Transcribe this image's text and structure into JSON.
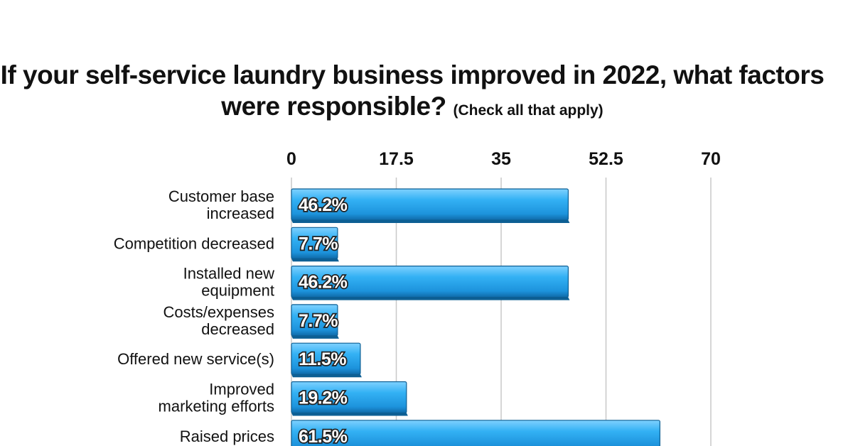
{
  "chart_data": {
    "type": "bar",
    "orientation": "horizontal",
    "title": "If your self-service laundry business improved in 2022, what factors were responsible?",
    "subtitle": "(Check all that apply)",
    "categories": [
      "Customer base increased",
      "Competition decreased",
      "Installed new equipment",
      "Costs/expenses decreased",
      "Offered new service(s)",
      "Improved marketing efforts",
      "Raised prices"
    ],
    "values": [
      46.2,
      7.7,
      46.2,
      7.7,
      11.5,
      19.2,
      61.5
    ],
    "value_labels": [
      "46.2%",
      "7.7%",
      "46.2%",
      "7.7%",
      "11.5%",
      "19.2%",
      "61.5%"
    ],
    "xlim": [
      0,
      70
    ],
    "xticks": [
      "0",
      "17.5",
      "35",
      "52.5",
      "70"
    ],
    "xtick_values": [
      0,
      17.5,
      35,
      52.5,
      70
    ],
    "x_axis_position": "top",
    "grid": true,
    "bar_color": "#2eaaf0",
    "bar_edge_color": "#0d5f94"
  }
}
